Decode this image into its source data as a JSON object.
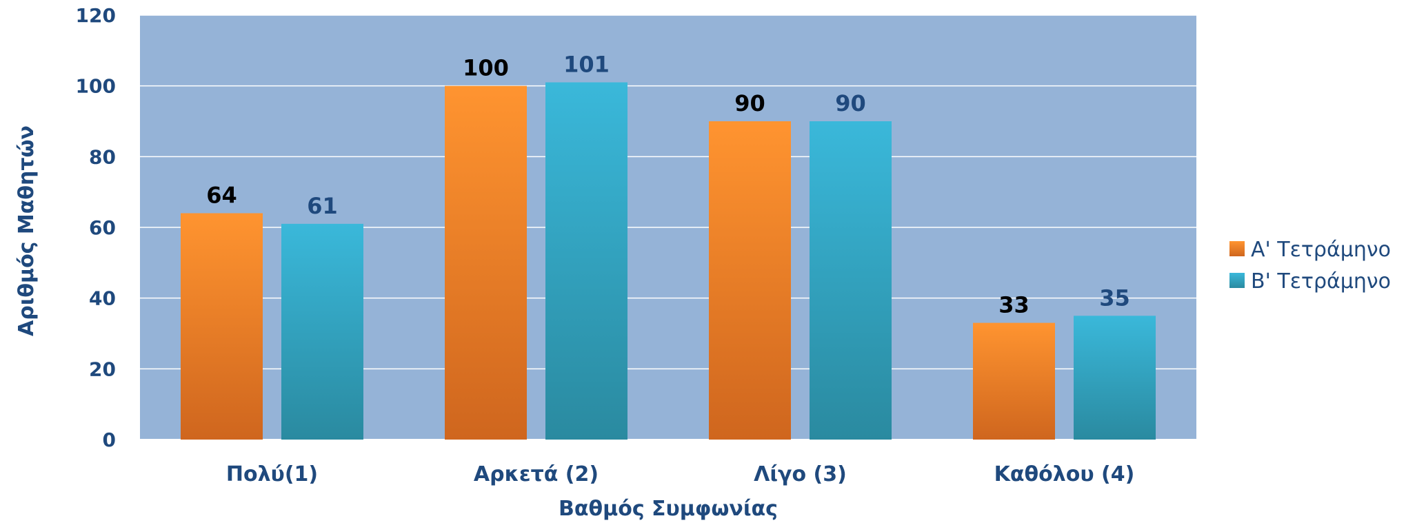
{
  "chart_data": {
    "type": "bar",
    "title": "",
    "xlabel": "Βαθμός Συμφωνίας",
    "ylabel": "Αριθμός Μαθητών",
    "ylim": [
      0,
      120
    ],
    "yticks": [
      0,
      20,
      40,
      60,
      80,
      100,
      120
    ],
    "grid": true,
    "legend_position": "right",
    "categories": [
      "Πολύ(1)",
      "Αρκετά (2)",
      "Λίγο (3)",
      "Καθόλου (4)"
    ],
    "series": [
      {
        "name": "Α' Τετράμηνο",
        "values": [
          64,
          100,
          90,
          33
        ],
        "color": "#f28b2c",
        "label_color": "#000000"
      },
      {
        "name": "Β' Τετράμηνο",
        "values": [
          61,
          101,
          90,
          35
        ],
        "color": "#31aacc",
        "label_color": "#1f497d"
      }
    ],
    "plot_background": "#95b3d7",
    "text_color": "#1f497d"
  }
}
